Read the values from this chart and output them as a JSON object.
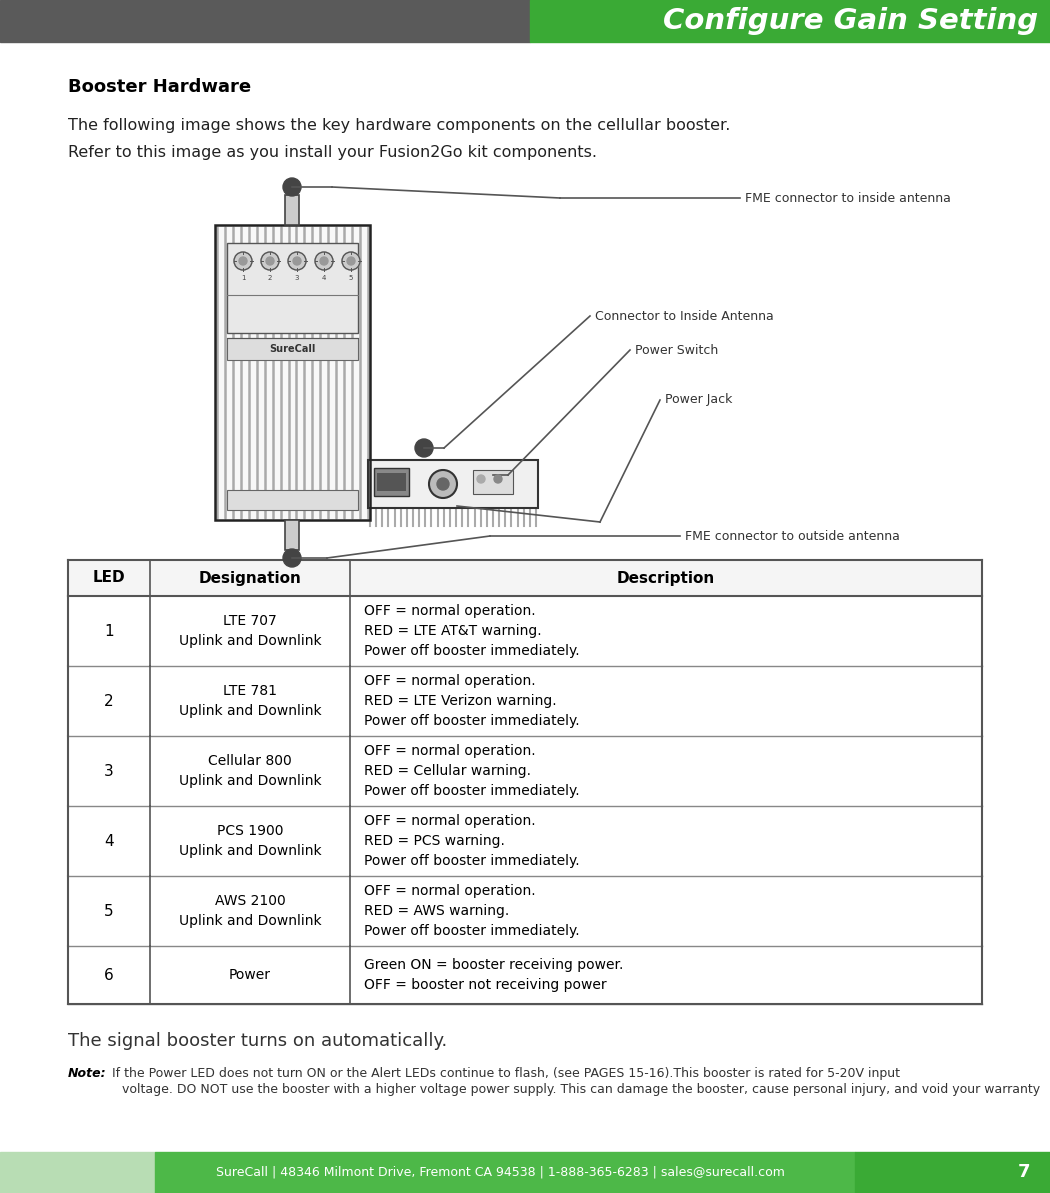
{
  "title": "Configure Gain Setting",
  "header_bg_color": "#5a5a5a",
  "header_green_color": "#3aaa35",
  "footer_bg_light": "#b8ddb4",
  "footer_bg_mid": "#4db848",
  "footer_bg_dark": "#3aaa35",
  "footer_text": "SureCall | 48346 Milmont Drive, Fremont CA 94538 | 1-888-365-6283 | sales@surecall.com",
  "footer_page": "7",
  "section_title": "Booster Hardware",
  "desc_line1": "The following image shows the key hardware components on the cellullar booster.",
  "desc_line2": "Refer to this image as you install your Fusion2Go kit components.",
  "note_line1": "The signal booster turns on automatically.",
  "note_label": "Note:",
  "note_line2": " If the Power LED does not turn ON or the Alert LEDs continue to flash, (see PAGES 15-16).This booster is rated for 5-20V input",
  "note_line3": "voltage. DO NOT use the booster with a higher voltage power supply. This can damage the booster, cause personal injury, and void your warranty",
  "table_headers": [
    "LED",
    "Designation",
    "Description"
  ],
  "table_rows": [
    [
      "1",
      "LTE 707\nUplink and Downlink",
      "OFF = normal operation.\nRED = LTE AT&T warning.\nPower off booster immediately."
    ],
    [
      "2",
      "LTE 781\nUplink and Downlink",
      "OFF = normal operation.\nRED = LTE Verizon warning.\nPower off booster immediately."
    ],
    [
      "3",
      "Cellular 800\nUplink and Downlink",
      "OFF = normal operation.\nRED = Cellular warning.\nPower off booster immediately."
    ],
    [
      "4",
      "PCS 1900\nUplink and Downlink",
      "OFF = normal operation.\nRED = PCS warning.\nPower off booster immediately."
    ],
    [
      "5",
      "AWS 2100\nUplink and Downlink",
      "OFF = normal operation.\nRED = AWS warning.\nPower off booster immediately."
    ],
    [
      "6",
      "Power",
      "Green ON = booster receiving power.\nOFF = booster not receiving power"
    ]
  ],
  "annotation_fme_inside": "FME connector to inside antenna",
  "annotation_connector_inside": "Connector to Inside Antenna",
  "annotation_power_switch": "Power Switch",
  "annotation_power_jack": "Power Jack",
  "annotation_fme_outside": "FME connector to outside antenna"
}
